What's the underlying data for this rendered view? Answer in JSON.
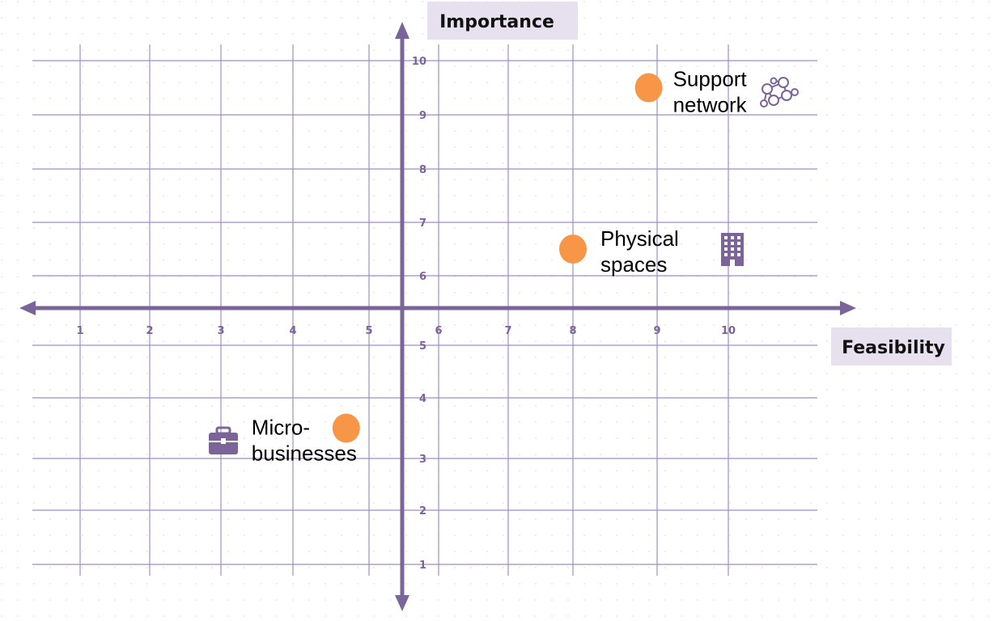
{
  "chart_data": {
    "type": "scatter",
    "title": "",
    "xlabel": "Feasibility",
    "ylabel": "Importance",
    "x_ticks": [
      "1",
      "2",
      "3",
      "4",
      "5",
      "6",
      "7",
      "8",
      "9",
      "10"
    ],
    "y_ticks": [
      "1",
      "2",
      "3",
      "4",
      "5",
      "6",
      "7",
      "8",
      "9",
      "10"
    ],
    "xlim": [
      1,
      10
    ],
    "ylim": [
      1,
      10
    ],
    "grid": true,
    "points": [
      {
        "label_lines": [
          "Support",
          "network"
        ],
        "x": 8.9,
        "y": 9.5,
        "icon": "network-icon"
      },
      {
        "label_lines": [
          "Physical",
          "spaces"
        ],
        "x": 8.0,
        "y": 6.5,
        "icon": "building-icon"
      },
      {
        "label_lines": [
          "Micro-",
          "businesses"
        ],
        "x": 4.7,
        "y": 3.5,
        "icon": "briefcase-icon"
      }
    ]
  },
  "colors": {
    "axis": "#7a6499",
    "grid": "#9f8ec2",
    "point": "#f79646",
    "title_bg": "#e6e0ef",
    "icon": "#7a6499"
  }
}
